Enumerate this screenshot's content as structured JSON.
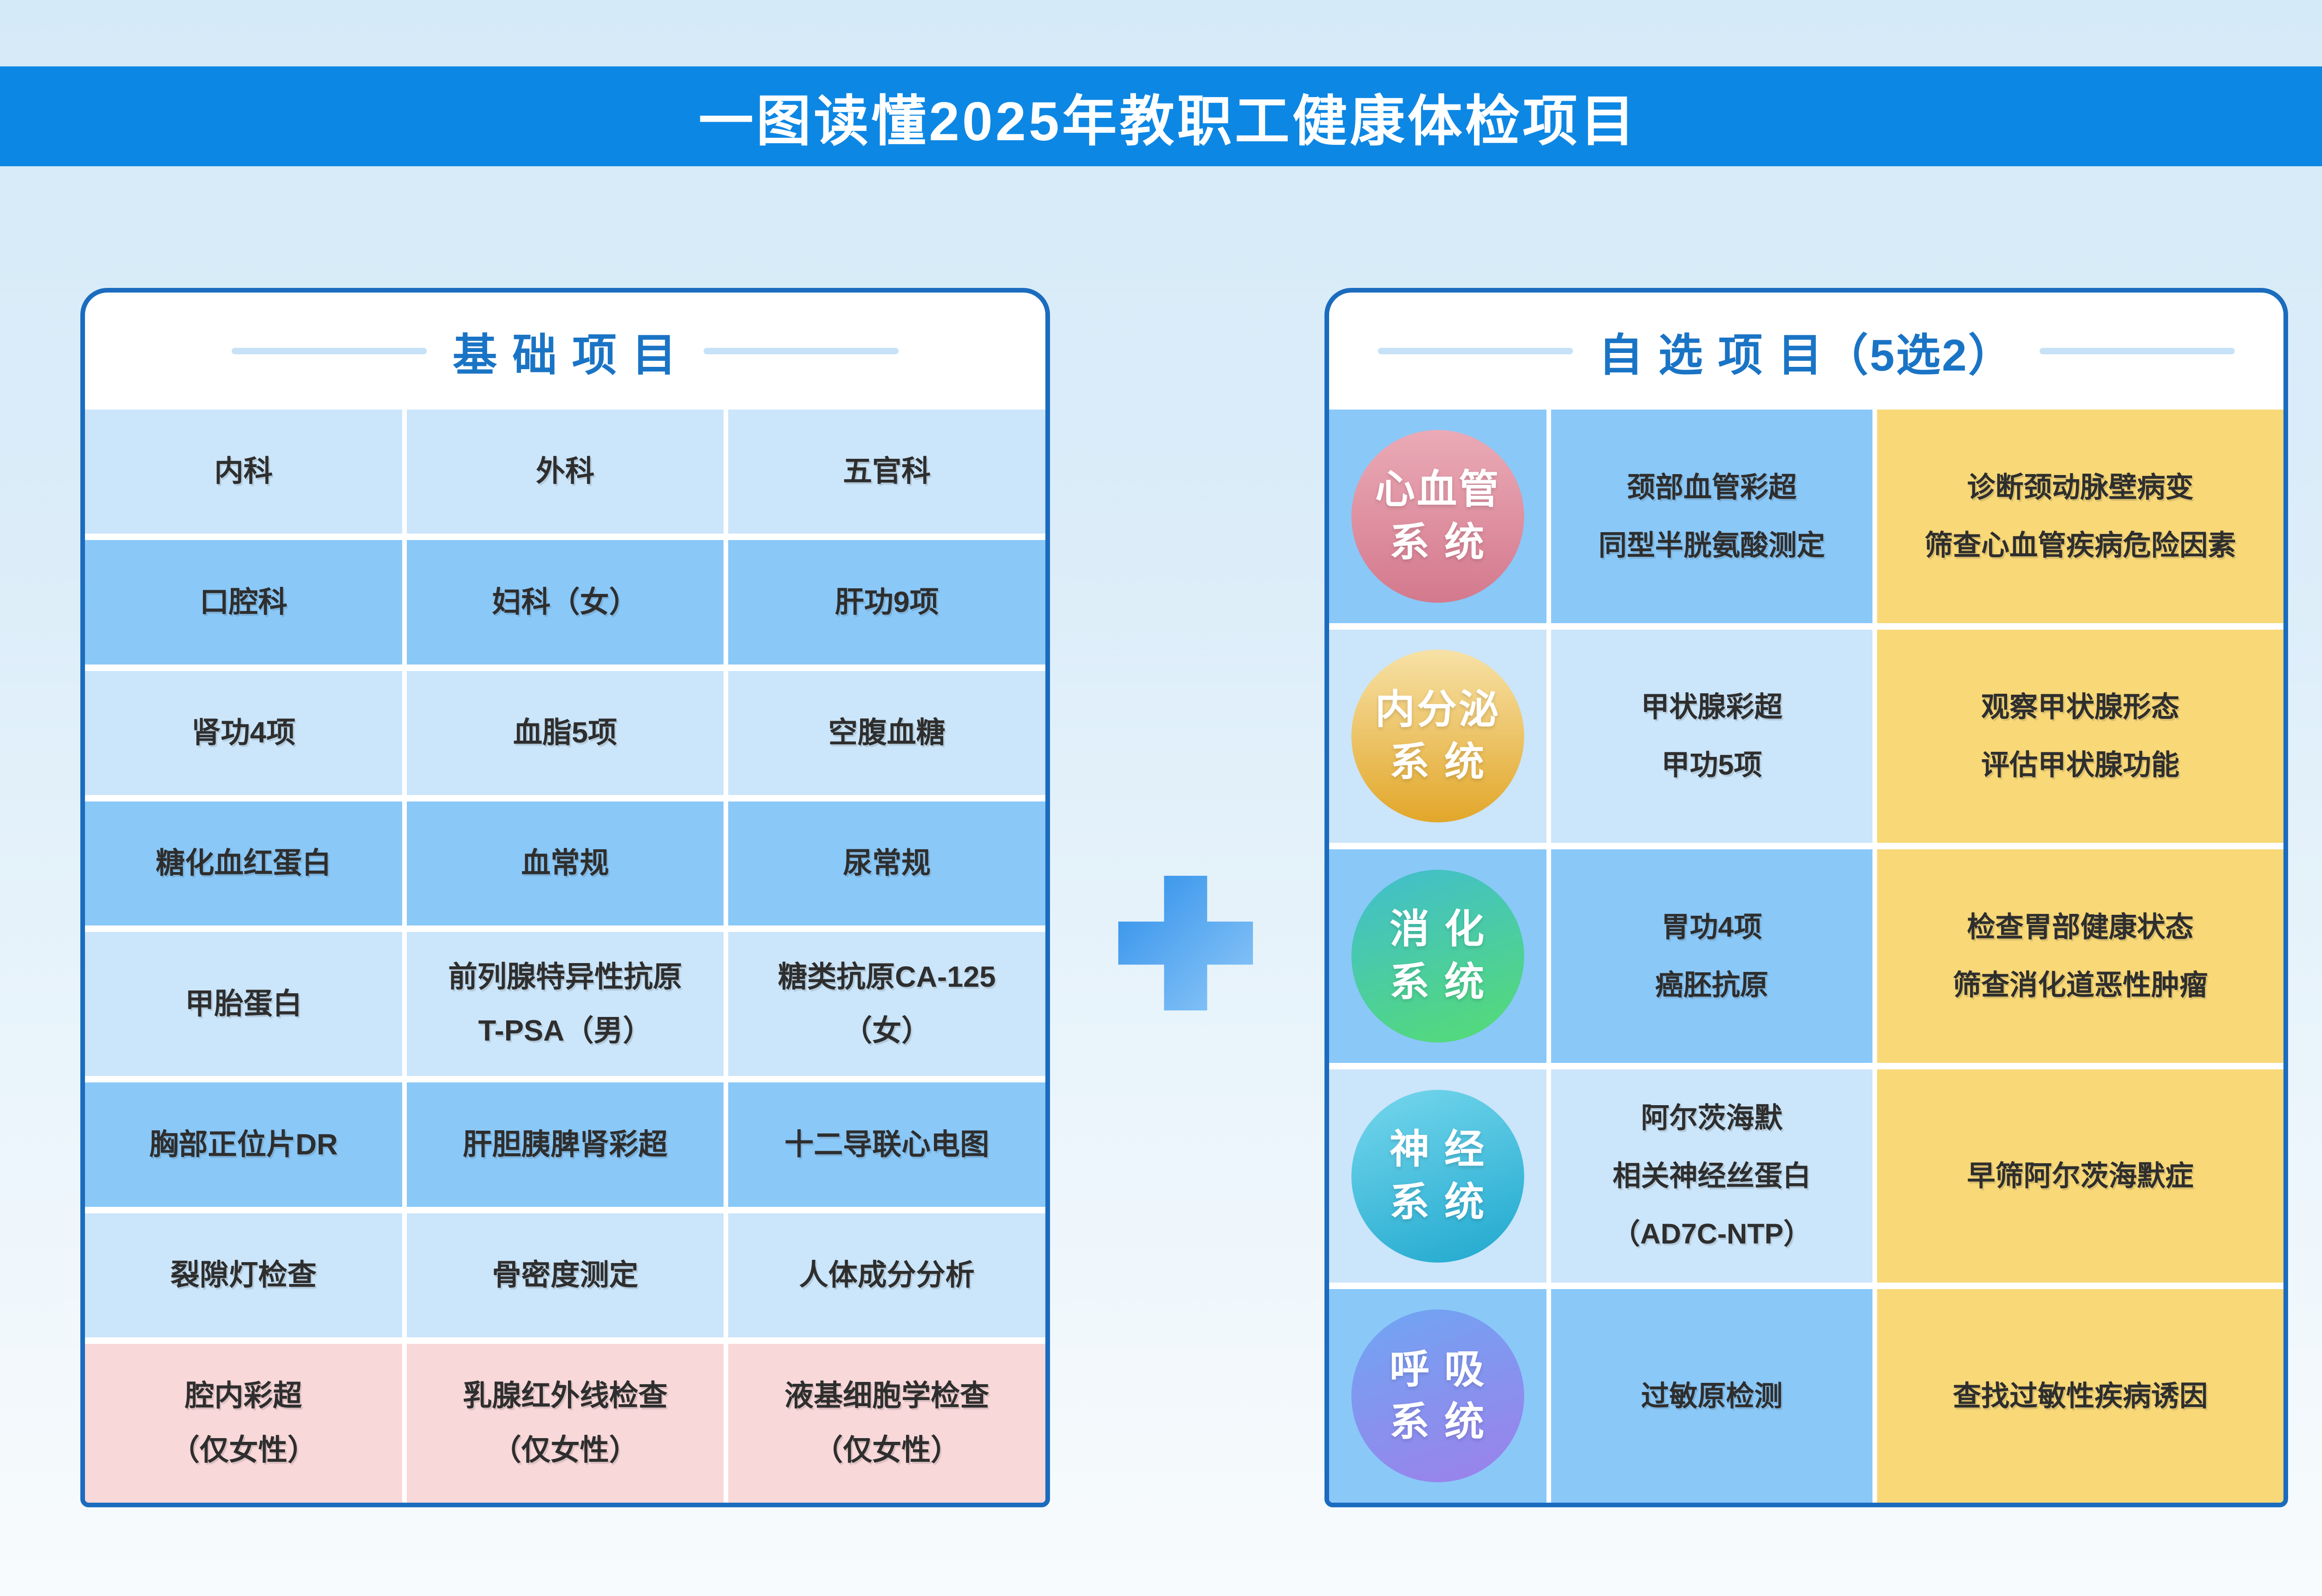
{
  "title": "一图读懂2025年教职工健康体检项目",
  "colors": {
    "banner_bg": "#0D87E4",
    "title_text": "#FFFFFF",
    "page_top": "#D5EAF8",
    "page_mid": "#DCEDF9",
    "page_bottom": "#F8FBFD",
    "panel_border": "#1B6CBE",
    "panel_bg": "#FFFFFF",
    "header_text": "#1A74C5",
    "header_line": "#C7E2F7",
    "cell_light": "#CBE5FA",
    "cell_medium": "#8AC8F8",
    "cell_pink": "#F9D8DA",
    "cell_yellow": "#F8D877",
    "cell_text": "#2E2E2E",
    "plus_from": "#2E8FE9",
    "plus_to": "#90C9F9"
  },
  "left_panel": {
    "header": "基 础 项 目",
    "rows": [
      {
        "cells": [
          {
            "lines": [
              "内科"
            ]
          },
          {
            "lines": [
              "外科"
            ]
          },
          {
            "lines": [
              "五官科"
            ]
          }
        ]
      },
      {
        "cells": [
          {
            "lines": [
              "口腔科"
            ]
          },
          {
            "lines": [
              "妇科（女）"
            ]
          },
          {
            "lines": [
              "肝功9项"
            ]
          }
        ]
      },
      {
        "cells": [
          {
            "lines": [
              "肾功4项"
            ]
          },
          {
            "lines": [
              "血脂5项"
            ]
          },
          {
            "lines": [
              "空腹血糖"
            ]
          }
        ]
      },
      {
        "cells": [
          {
            "lines": [
              "糖化血红蛋白"
            ]
          },
          {
            "lines": [
              "血常规"
            ]
          },
          {
            "lines": [
              "尿常规"
            ]
          }
        ]
      },
      {
        "cells": [
          {
            "lines": [
              "甲胎蛋白"
            ]
          },
          {
            "lines": [
              "前列腺特异性抗原",
              "T-PSA（男）"
            ]
          },
          {
            "lines": [
              "糖类抗原CA-125",
              "（女）"
            ]
          }
        ]
      },
      {
        "cells": [
          {
            "lines": [
              "胸部正位片DR"
            ]
          },
          {
            "lines": [
              "肝胆胰脾肾彩超"
            ]
          },
          {
            "lines": [
              "十二导联心电图"
            ]
          }
        ]
      },
      {
        "cells": [
          {
            "lines": [
              "裂隙灯检查"
            ]
          },
          {
            "lines": [
              "骨密度测定"
            ]
          },
          {
            "lines": [
              "人体成分分析"
            ]
          }
        ]
      },
      {
        "cells": [
          {
            "lines": [
              "腔内彩超",
              "（仅女性）"
            ]
          },
          {
            "lines": [
              "乳腺红外线检查",
              "（仅女性）"
            ]
          },
          {
            "lines": [
              "液基细胞学检查",
              "（仅女性）"
            ]
          }
        ]
      }
    ]
  },
  "plus_symbol": "plus",
  "right_panel": {
    "header": "自 选 项 目（5选2）",
    "rows": [
      {
        "system": {
          "lines": [
            "心血管",
            "系 统"
          ],
          "style": "background:linear-gradient(180deg,#EAAAB6,#D4798D)"
        },
        "tests": {
          "lines": [
            "颈部血管彩超",
            "同型半胱氨酸测定"
          ]
        },
        "purpose": {
          "lines": [
            "诊断颈动脉壁病变",
            "筛查心血管疾病危险因素"
          ]
        }
      },
      {
        "system": {
          "lines": [
            "内分泌",
            "系 统"
          ],
          "style": "background:linear-gradient(180deg,#F7E1A6,#E2A72A)"
        },
        "tests": {
          "lines": [
            "甲状腺彩超",
            "甲功5项"
          ]
        },
        "purpose": {
          "lines": [
            "观察甲状腺形态",
            "评估甲状腺功能"
          ]
        }
      },
      {
        "system": {
          "lines": [
            "消 化",
            "系 统"
          ],
          "style": "background:linear-gradient(160deg,#41BDD0,#55DC73)"
        },
        "tests": {
          "lines": [
            "胃功4项",
            "癌胚抗原"
          ]
        },
        "purpose": {
          "lines": [
            "检查胃部健康状态",
            "筛查消化道恶性肿瘤"
          ]
        }
      },
      {
        "system": {
          "lines": [
            "神 经",
            "系 统"
          ],
          "style": "background:linear-gradient(160deg,#76D7ED,#1FA8CE)"
        },
        "tests": {
          "lines": [
            "阿尔茨海默",
            "相关神经丝蛋白",
            "（AD7C-NTP）"
          ]
        },
        "purpose": {
          "lines": [
            "早筛阿尔茨海默症"
          ]
        }
      },
      {
        "system": {
          "lines": [
            "呼 吸",
            "系 统"
          ],
          "style": "background:linear-gradient(160deg,#6FA6F3,#9D80EA)"
        },
        "tests": {
          "lines": [
            "过敏原检测"
          ]
        },
        "purpose": {
          "lines": [
            "查找过敏性疾病诱因"
          ]
        }
      }
    ]
  }
}
